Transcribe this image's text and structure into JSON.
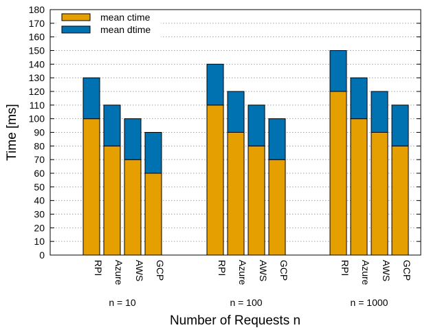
{
  "chart_data": {
    "type": "bar",
    "stacked": true,
    "xlabel": "Number of Requests n",
    "ylabel": "Time [ms]",
    "ylim": [
      0,
      180
    ],
    "yticks": [
      0,
      10,
      20,
      30,
      40,
      50,
      60,
      70,
      80,
      90,
      100,
      110,
      120,
      130,
      140,
      150,
      160,
      170,
      180
    ],
    "grid": "horizontal dotted",
    "legend_position": "top-left",
    "groups": [
      {
        "label": "n = 10",
        "categories": [
          "RPI",
          "Azure",
          "AWS",
          "GCP"
        ]
      },
      {
        "label": "n = 100",
        "categories": [
          "RPI",
          "Azure",
          "AWS",
          "GCP"
        ]
      },
      {
        "label": "n = 1000",
        "categories": [
          "RPI",
          "Azure",
          "AWS",
          "GCP"
        ]
      }
    ],
    "series": [
      {
        "name": "mean ctime",
        "color": "#E69F00",
        "values": [
          [
            100,
            80,
            70,
            60
          ],
          [
            110,
            90,
            80,
            70
          ],
          [
            120,
            100,
            90,
            80
          ]
        ]
      },
      {
        "name": "mean dtime",
        "color": "#0072B2",
        "values": [
          [
            30,
            30,
            30,
            30
          ],
          [
            30,
            30,
            30,
            30
          ],
          [
            30,
            30,
            30,
            30
          ]
        ]
      }
    ]
  }
}
